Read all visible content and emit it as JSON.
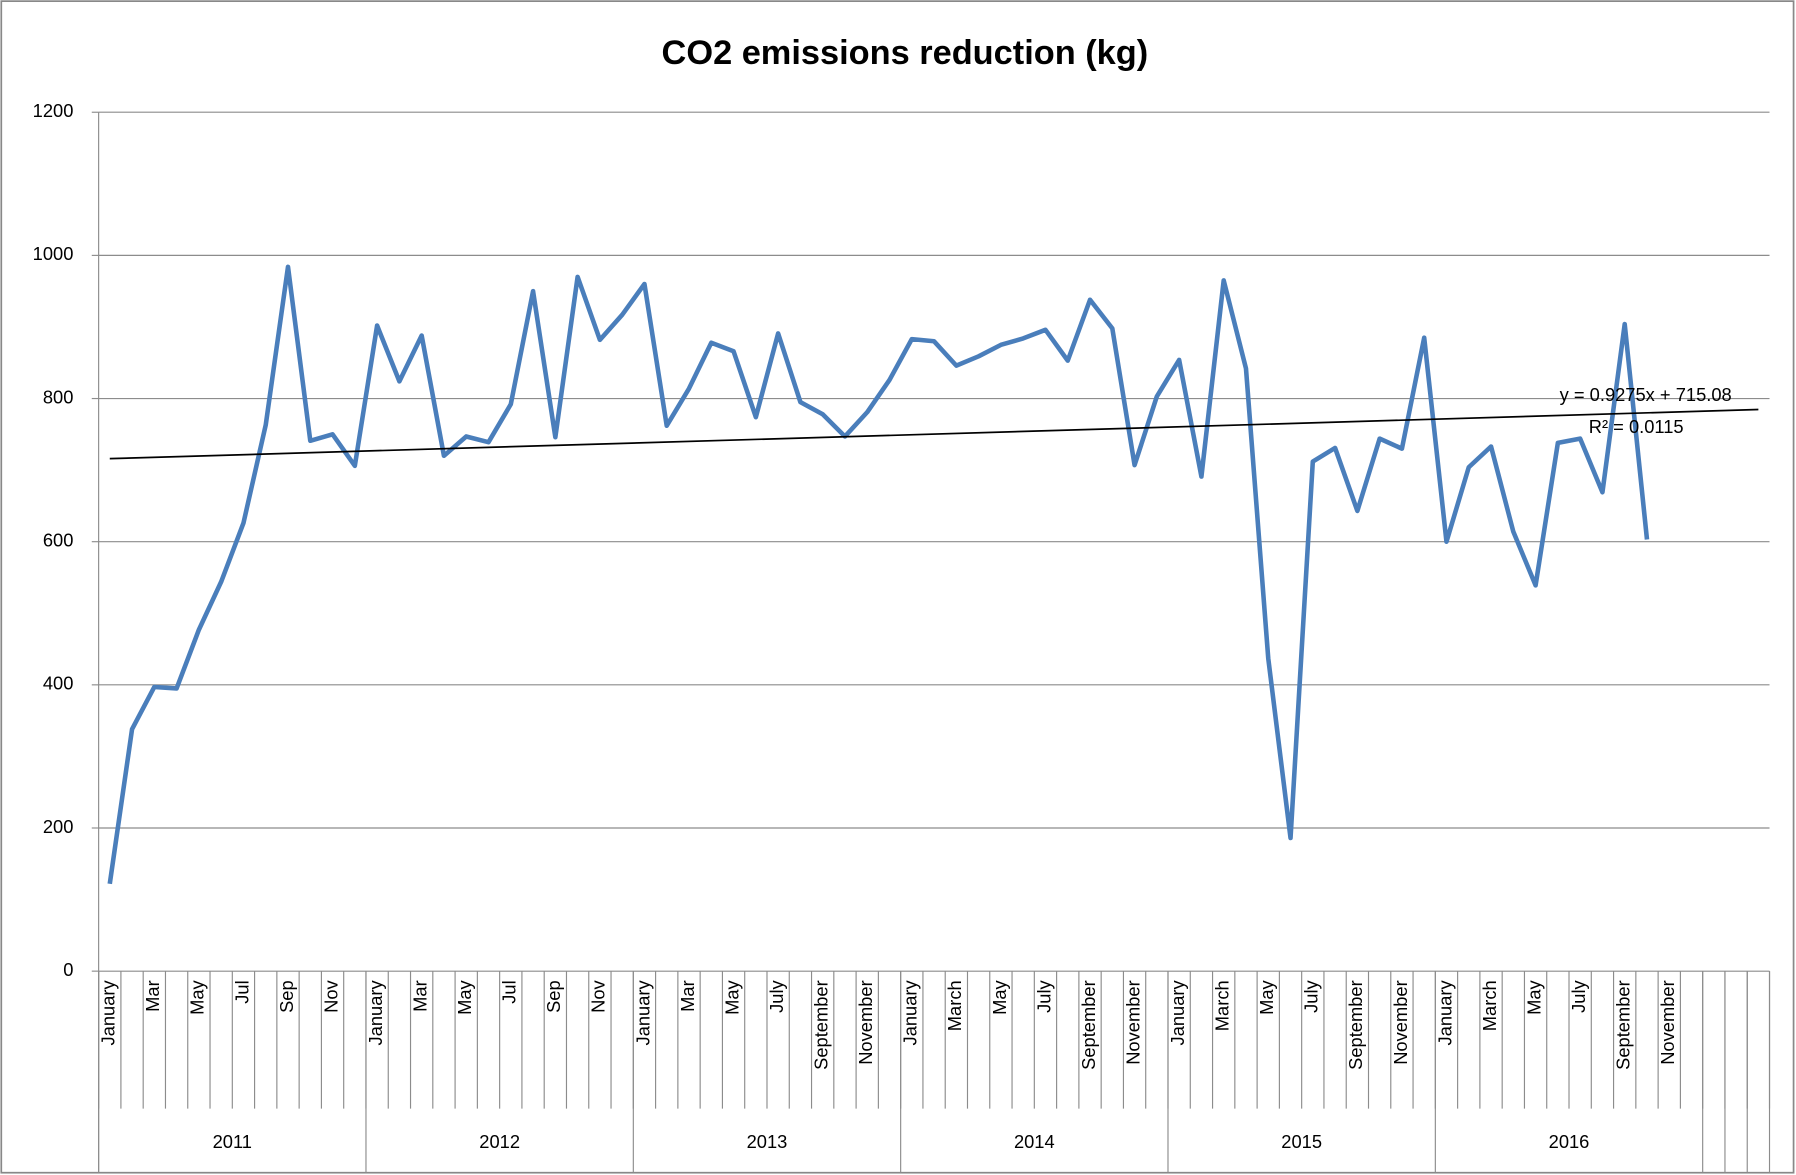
{
  "chart_data": {
    "type": "line",
    "title": "CO2 emissions reduction (kg)",
    "categories": [
      "January",
      null,
      "Mar",
      null,
      "May",
      null,
      "Jul",
      null,
      "Sep",
      null,
      "Nov",
      null,
      "January",
      null,
      "Mar",
      null,
      "May",
      null,
      "Jul",
      null,
      "Sep",
      null,
      "Nov",
      null,
      "January",
      null,
      "Mar",
      null,
      "May",
      null,
      "July",
      null,
      "September",
      null,
      "November",
      null,
      "January",
      null,
      "March",
      null,
      "May",
      null,
      "July",
      null,
      "September",
      null,
      "November",
      null,
      "January",
      null,
      "March",
      null,
      "May",
      null,
      "July",
      null,
      "September",
      null,
      "November",
      null,
      "January",
      null,
      "March",
      null,
      "May",
      null,
      "July",
      null,
      "September",
      null,
      "November",
      null,
      null,
      null,
      null
    ],
    "category_groups": [
      {
        "label": "2011",
        "size": 12
      },
      {
        "label": "2012",
        "size": 12
      },
      {
        "label": "2013",
        "size": 12
      },
      {
        "label": "2014",
        "size": 12
      },
      {
        "label": "2015",
        "size": 12
      },
      {
        "label": "2016",
        "size": 12
      },
      {
        "label": null,
        "size": 1
      },
      {
        "label": null,
        "size": 1
      },
      {
        "label": null,
        "size": 1
      }
    ],
    "series": [
      {
        "name": "CO2 emissions reduction",
        "color": "#4a7ebb",
        "values": [
          122,
          338,
          397,
          395,
          477,
          544,
          626,
          763,
          984,
          741,
          750,
          706,
          902,
          824,
          888,
          720,
          747,
          739,
          792,
          950,
          746,
          970,
          882,
          917,
          960,
          762,
          814,
          878,
          866,
          774,
          891,
          795,
          778,
          747,
          781,
          826,
          883,
          880,
          846,
          859,
          875,
          884,
          896,
          853,
          938,
          898,
          707,
          803,
          854,
          691,
          965,
          842,
          437,
          186,
          712,
          731,
          643,
          744,
          730,
          885,
          600,
          704,
          733,
          614,
          539,
          738,
          744,
          669,
          904,
          603,
          null,
          null,
          null,
          null,
          null
        ]
      }
    ],
    "trendline": {
      "equation": "y = 0.9275x + 715.08",
      "r_squared": "R² = 0.0115",
      "slope": 0.9275,
      "intercept": 715.08,
      "color": "#000000"
    },
    "ylim": [
      0,
      1200
    ],
    "yticks": [
      0,
      200,
      400,
      600,
      800,
      1000,
      1200
    ],
    "grid": true
  }
}
